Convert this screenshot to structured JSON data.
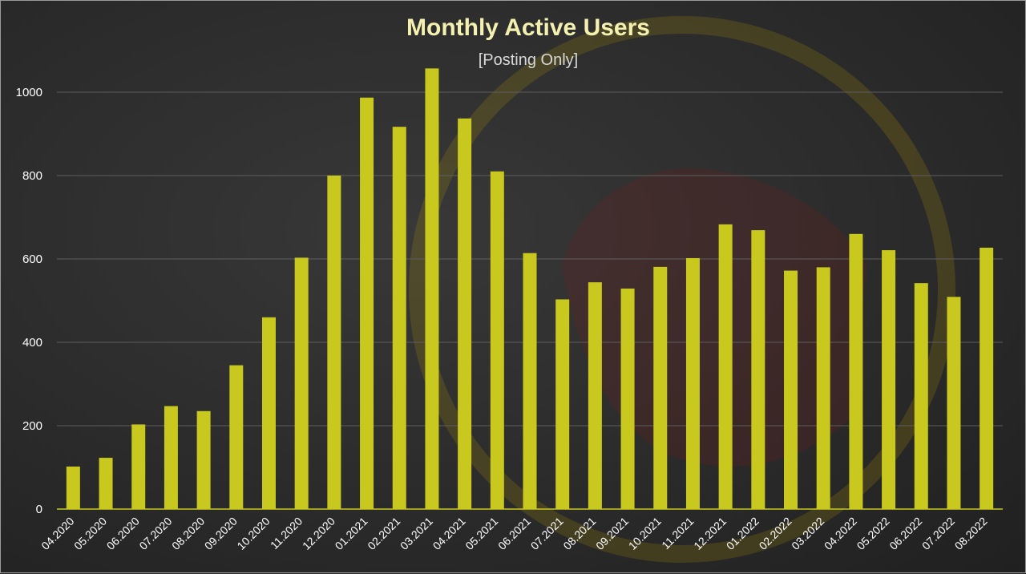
{
  "chart_data": {
    "type": "bar",
    "title": "Monthly Active Users",
    "subtitle": "[Posting Only]",
    "xlabel": "",
    "ylabel": "",
    "ylim": [
      0,
      1100
    ],
    "yticks": [
      0,
      200,
      400,
      600,
      800,
      1000
    ],
    "grid": true,
    "legend": "none",
    "colors": {
      "bar": "#c8c81e",
      "title": "#f3f0b0",
      "subtitle": "#d8d8d8",
      "axis_text": "#ffffff",
      "grid": "#5e5e5e",
      "axis_line": "#c8c81e"
    },
    "categories": [
      "04.2020",
      "05.2020",
      "06.2020",
      "07.2020",
      "08.2020",
      "09.2020",
      "10.2020",
      "11.2020",
      "12.2020",
      "01.2021",
      "02.2021",
      "03.2021",
      "04.2021",
      "05.2021",
      "06.2021",
      "07.2021",
      "08.2021",
      "09.2021",
      "10.2021",
      "11.2021",
      "12.2021",
      "01.2022",
      "02.2022",
      "03.2022",
      "04.2022",
      "05.2022",
      "06.2022",
      "07.2022",
      "08.2022"
    ],
    "values": [
      102,
      123,
      203,
      247,
      235,
      345,
      460,
      603,
      800,
      987,
      917,
      1057,
      937,
      810,
      614,
      503,
      544,
      529,
      581,
      602,
      683,
      669,
      572,
      580,
      660,
      621,
      542,
      509,
      627
    ]
  }
}
